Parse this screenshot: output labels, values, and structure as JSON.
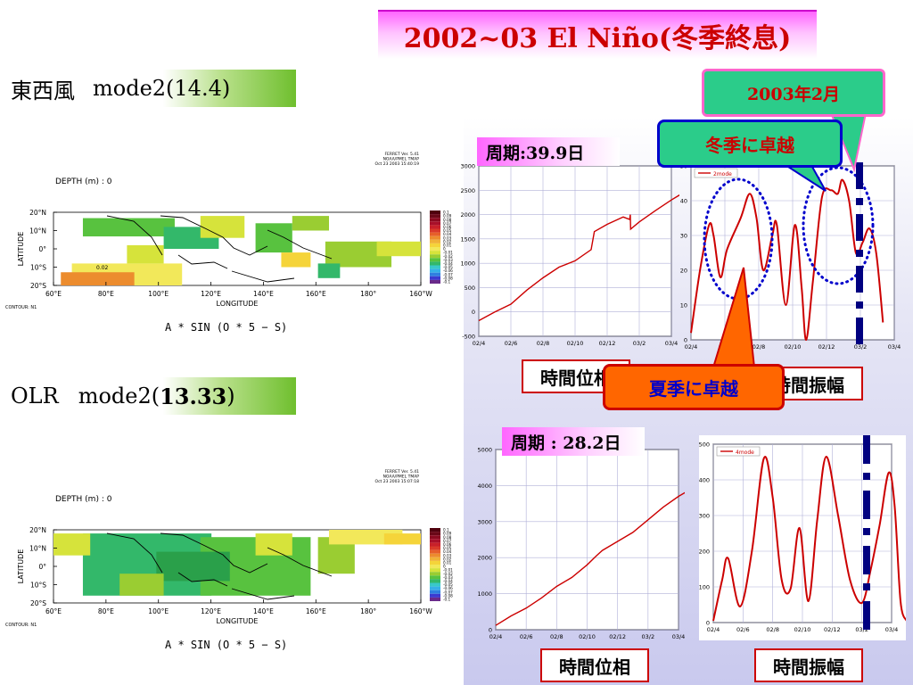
{
  "title": "2002~03 El Niño(冬季終息)",
  "sections": {
    "wind": {
      "name": "東西風",
      "mode": "mode2(14.4)"
    },
    "olr": {
      "name": "OLR",
      "mode_prefix": "mode2(",
      "mode_value": "13.33",
      "mode_suffix": ")"
    }
  },
  "callouts": {
    "feb": "2003年2月",
    "winter": "冬季に卓越",
    "summer": "夏季に卓越"
  },
  "periods": {
    "top": "周期:39.9日",
    "bottom": "周期 : 28.2日"
  },
  "boxes": {
    "phase": "時間位相",
    "amplitude": "時間振幅"
  },
  "maps": [
    {
      "depth": "DEPTH (m) : 0",
      "ferret": [
        "FERRET Ver. 5.41",
        "NOAA/PMEL TMAP",
        "Oct 23 2003 15:40:19"
      ],
      "lat_ticks": [
        "20°N",
        "10°N",
        "0°",
        "10°S",
        "20°S"
      ],
      "lon_ticks": [
        "60°E",
        "80°E",
        "100°E",
        "120°E",
        "140°E",
        "160°E",
        "180°",
        "160°W"
      ],
      "xlabel": "LONGITUDE",
      "ylabel": "LATITUDE",
      "contour": "CONTOUR: N1",
      "formula": "A * SIN (O * 5 − S)",
      "contour_value": "0.02",
      "colorbar": [
        "0.1",
        "0.09",
        "0.08",
        "0.07",
        "0.06",
        "0.05",
        "0.04",
        "0.03",
        "0.02",
        "0.01",
        "0",
        "-0.01",
        "-0.02",
        "-0.03",
        "-0.04",
        "-0.05",
        "-0.06",
        "-0.07",
        "-0.08",
        "-0.1"
      ]
    },
    {
      "depth": "DEPTH (m) : 0",
      "ferret": [
        "FERRET Ver. 5.41",
        "NOAA/PMEL TMAP",
        "Oct 23 2003 15:07:18"
      ],
      "lat_ticks": [
        "20°N",
        "10°N",
        "0°",
        "10°S",
        "20°S"
      ],
      "lon_ticks": [
        "60°E",
        "80°E",
        "100°E",
        "120°E",
        "140°E",
        "160°E",
        "180°",
        "160°W"
      ],
      "xlabel": "LONGITUDE",
      "ylabel": "LATITUDE",
      "contour": "CONTOUR: N1",
      "formula": "A * SIN (O * 5 − S)",
      "contour_value": "",
      "colorbar": [
        "0.1",
        "0.09",
        "0.08",
        "0.07",
        "0.06",
        "0.05",
        "0.04",
        "0.03",
        "0.02",
        "0.01",
        "0",
        "-0.01",
        "-0.02",
        "-0.03",
        "-0.04",
        "-0.05",
        "-0.06",
        "-0.07",
        "-0.08",
        "-0.1"
      ]
    }
  ],
  "colors": {
    "curve": "#cc0000",
    "dash": "#000080",
    "circle": "#0000cc",
    "grid": "#b0b0d8"
  },
  "chart_data": [
    {
      "type": "line",
      "id": "phase-top",
      "categories": [
        "02/4",
        "02/6",
        "02/8",
        "02/10",
        "02/12",
        "03/2",
        "03/4"
      ],
      "ylim": [
        -500,
        3000
      ],
      "yticks": [
        -500,
        0,
        500,
        1000,
        1500,
        2000,
        2500,
        3000
      ],
      "segments": [
        [
          [
            0,
            -180
          ],
          [
            0.5,
            0
          ],
          [
            1,
            160
          ],
          [
            1.5,
            450
          ],
          [
            2,
            700
          ],
          [
            2.5,
            920
          ],
          [
            3,
            1050
          ],
          [
            3.5,
            1280
          ],
          [
            3.6,
            1650
          ],
          [
            4,
            1800
          ],
          [
            4.5,
            1950
          ],
          [
            4.7,
            1900
          ],
          [
            4.72,
            2000
          ],
          [
            4.73,
            1700
          ],
          [
            5,
            1850
          ],
          [
            5.5,
            2080
          ],
          [
            6,
            2300
          ],
          [
            6.5,
            2500
          ],
          [
            6.95,
            2680
          ],
          [
            7.0,
            2350
          ]
        ]
      ]
    },
    {
      "type": "line",
      "id": "amp-top",
      "categories": [
        "02/4",
        "02/6",
        "02/8",
        "02/10",
        "02/12",
        "03/2",
        "03/4"
      ],
      "ylim": [
        0,
        50
      ],
      "yticks": [
        0,
        10,
        20,
        30,
        40,
        50
      ],
      "legend": "2mode",
      "points": [
        [
          0,
          2
        ],
        [
          0.4,
          20
        ],
        [
          0.8,
          33
        ],
        [
          1.0,
          30
        ],
        [
          1.3,
          18
        ],
        [
          1.6,
          26
        ],
        [
          2.2,
          35
        ],
        [
          2.6,
          42
        ],
        [
          2.9,
          35
        ],
        [
          3.2,
          20
        ],
        [
          3.6,
          30
        ],
        [
          3.8,
          33
        ],
        [
          4.2,
          10
        ],
        [
          4.6,
          33
        ],
        [
          4.9,
          15
        ],
        [
          5.1,
          0
        ],
        [
          5.4,
          17
        ],
        [
          5.8,
          41
        ],
        [
          6.2,
          43
        ],
        [
          6.5,
          42
        ],
        [
          6.7,
          46
        ],
        [
          7.0,
          40
        ],
        [
          7.3,
          25
        ],
        [
          7.6,
          28
        ],
        [
          7.9,
          32
        ],
        [
          8.2,
          25
        ],
        [
          8.5,
          5
        ]
      ]
    },
    {
      "type": "line",
      "id": "phase-bottom",
      "categories": [
        "02/4",
        "02/6",
        "02/8",
        "02/10",
        "02/12",
        "03/2",
        "03/4"
      ],
      "ylim": [
        0,
        5000
      ],
      "yticks": [
        0,
        1000,
        2000,
        3000,
        4000,
        5000
      ],
      "segments": [
        [
          [
            0,
            120
          ],
          [
            0.5,
            380
          ],
          [
            1,
            600
          ],
          [
            1.5,
            880
          ],
          [
            2,
            1200
          ],
          [
            2.5,
            1450
          ],
          [
            3,
            1800
          ],
          [
            3.3,
            2050
          ],
          [
            3.5,
            2200
          ],
          [
            4,
            2450
          ],
          [
            4.5,
            2700
          ],
          [
            5,
            3050
          ],
          [
            5.5,
            3400
          ],
          [
            6,
            3700
          ],
          [
            6.3,
            3850
          ],
          [
            6.35,
            4050
          ]
        ]
      ]
    },
    {
      "type": "line",
      "id": "amp-bottom",
      "categories": [
        "02/4",
        "02/6",
        "02/8",
        "02/10",
        "02/12",
        "03/2",
        "03/4"
      ],
      "ylim": [
        0,
        500
      ],
      "yticks": [
        0,
        100,
        200,
        300,
        400,
        500
      ],
      "legend": "4mode",
      "points": [
        [
          0,
          5
        ],
        [
          0.3,
          120
        ],
        [
          0.5,
          180
        ],
        [
          0.9,
          45
        ],
        [
          1.3,
          200
        ],
        [
          1.7,
          460
        ],
        [
          2.0,
          350
        ],
        [
          2.3,
          120
        ],
        [
          2.6,
          95
        ],
        [
          2.9,
          265
        ],
        [
          3.2,
          60
        ],
        [
          3.5,
          290
        ],
        [
          3.8,
          465
        ],
        [
          4.2,
          300
        ],
        [
          4.6,
          120
        ],
        [
          5.0,
          55
        ],
        [
          5.3,
          150
        ],
        [
          5.6,
          275
        ],
        [
          5.9,
          420
        ],
        [
          6.1,
          330
        ],
        [
          6.3,
          60
        ],
        [
          6.5,
          5
        ]
      ]
    }
  ]
}
